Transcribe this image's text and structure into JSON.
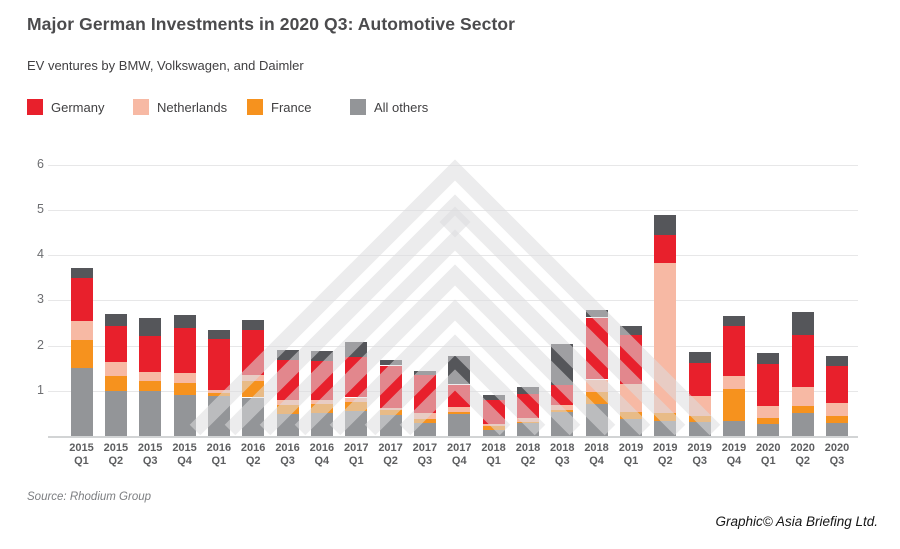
{
  "header": {
    "title": "Major German Investments in 2020 Q3: Automotive Sector",
    "subtitle": "EV ventures by BMW, Volkswagen, and Daimler"
  },
  "legend": [
    {
      "label": "Germany",
      "color": "#e8202c"
    },
    {
      "label": "Netherlands",
      "color": "#f7b9a4"
    },
    {
      "label": "France",
      "color": "#f6921e"
    },
    {
      "label": "All others",
      "color": "#939598"
    }
  ],
  "footer": {
    "source": "Source: Rhodium Group",
    "credit": "Graphic© Asia Briefing Ltd."
  },
  "chart_data": {
    "type": "bar",
    "stacked": true,
    "title": "Major German Investments in 2020 Q3: Automotive Sector",
    "subtitle": "EV ventures by BMW, Volkswagen, and Daimler",
    "xlabel": "",
    "ylabel": "",
    "ylim": [
      0,
      6
    ],
    "yticks": [
      1,
      2,
      3,
      4,
      5,
      6
    ],
    "grid": true,
    "legend_position": "top",
    "categories": [
      "2015 Q1",
      "2015 Q2",
      "2015 Q3",
      "2015 Q4",
      "2016 Q1",
      "2016 Q2",
      "2016 Q3",
      "2016 Q4",
      "2017 Q1",
      "2017 Q2",
      "2017 Q3",
      "2017 Q4",
      "2018 Q1",
      "2018 Q2",
      "2018 Q3",
      "2018 Q4",
      "2019 Q1",
      "2019 Q2",
      "2019 Q3",
      "2019 Q4",
      "2020 Q1",
      "2020 Q2",
      "2020 Q3"
    ],
    "series": [
      {
        "name": "All others",
        "color": "#939598",
        "in_legend": true,
        "values": [
          1.5,
          1.0,
          1.0,
          0.9,
          0.88,
          0.85,
          0.48,
          0.51,
          0.55,
          0.46,
          0.29,
          0.49,
          0.13,
          0.28,
          0.54,
          0.7,
          0.37,
          0.33,
          0.3,
          0.34,
          0.26,
          0.5,
          0.29
        ]
      },
      {
        "name": "France",
        "color": "#f6921e",
        "in_legend": true,
        "values": [
          0.62,
          0.33,
          0.21,
          0.28,
          0.07,
          0.37,
          0.21,
          0.19,
          0.2,
          0.12,
          0.08,
          0.04,
          0.1,
          0.03,
          0.03,
          0.28,
          0.17,
          0.17,
          0.14,
          0.69,
          0.13,
          0.16,
          0.15
        ]
      },
      {
        "name": "Netherlands",
        "color": "#f7b9a4",
        "in_legend": true,
        "values": [
          0.42,
          0.3,
          0.2,
          0.21,
          0.06,
          0.12,
          0.11,
          0.1,
          0.1,
          0.05,
          0.13,
          0.12,
          0.04,
          0.09,
          0.11,
          0.27,
          0.61,
          3.33,
          0.44,
          0.29,
          0.27,
          0.43,
          0.28
        ]
      },
      {
        "name": "Germany",
        "color": "#e8202c",
        "in_legend": true,
        "values": [
          0.96,
          0.81,
          0.8,
          1.0,
          1.13,
          1.0,
          0.88,
          0.86,
          0.89,
          0.93,
          0.84,
          0.49,
          0.53,
          0.53,
          0.45,
          1.37,
          1.09,
          0.61,
          0.74,
          1.11,
          0.93,
          1.15,
          0.82
        ]
      },
      {
        "name": "(unlabeled)",
        "color": "#55565a",
        "in_legend": false,
        "values": [
          0.21,
          0.25,
          0.4,
          0.28,
          0.2,
          0.22,
          0.22,
          0.22,
          0.34,
          0.12,
          0.09,
          0.64,
          0.11,
          0.15,
          0.9,
          0.16,
          0.2,
          0.46,
          0.24,
          0.22,
          0.25,
          0.5,
          0.23
        ]
      }
    ]
  }
}
